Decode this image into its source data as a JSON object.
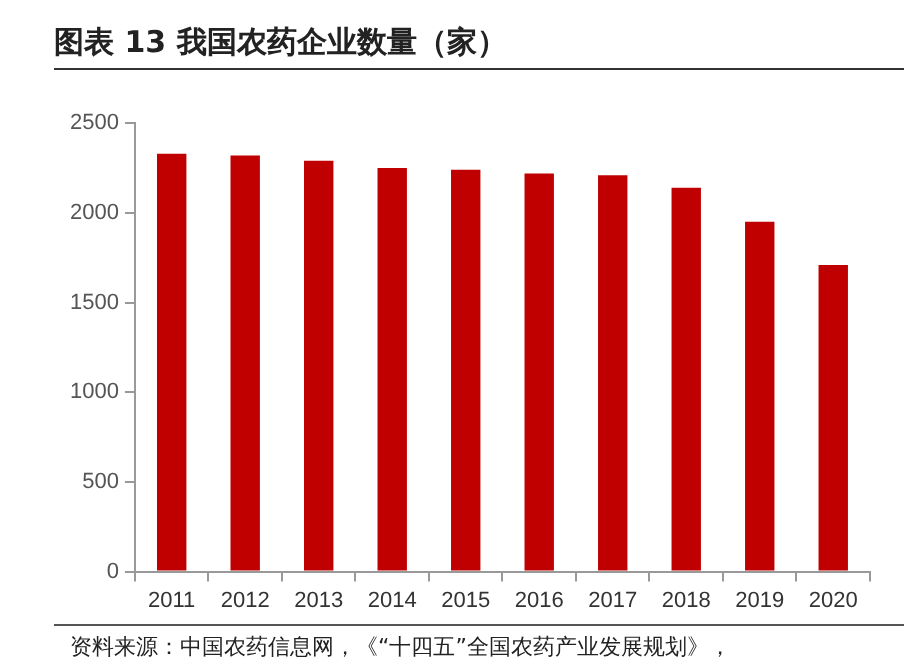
{
  "chart_data": {
    "type": "bar",
    "title": "图表 13 我国农药企业数量（家）",
    "categories": [
      "2011",
      "2012",
      "2013",
      "2014",
      "2015",
      "2016",
      "2017",
      "2018",
      "2019",
      "2020"
    ],
    "values": [
      2330,
      2320,
      2290,
      2250,
      2240,
      2220,
      2210,
      2140,
      1950,
      1710
    ],
    "color": "#c00000",
    "ylim": [
      0,
      2500
    ],
    "yticks": [
      0,
      500,
      1000,
      1500,
      2000,
      2500
    ],
    "grid": false,
    "legend": false,
    "annotations": [
      "资料来源：中国农药信息网，《“十四五”全国农药产业发展规划》，"
    ]
  }
}
